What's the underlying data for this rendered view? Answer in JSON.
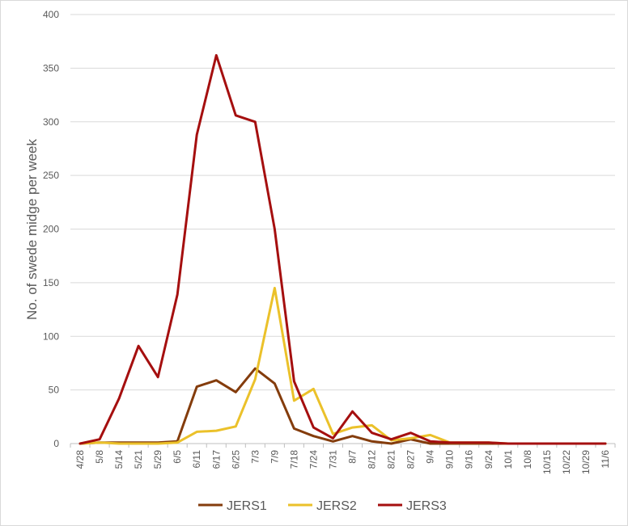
{
  "chart_data": {
    "type": "line",
    "title": "",
    "xlabel": "",
    "ylabel": "No. of swede midge per week",
    "ylim": [
      0,
      400
    ],
    "yticks": [
      0,
      50,
      100,
      150,
      200,
      250,
      300,
      350,
      400
    ],
    "grid": true,
    "legend": "bottom",
    "categories": [
      "4/28",
      "5/8",
      "5/14",
      "5/21",
      "5/29",
      "6/5",
      "6/11",
      "6/17",
      "6/25",
      "7/3",
      "7/9",
      "7/18",
      "7/24",
      "7/31",
      "8/7",
      "8/12",
      "8/21",
      "8/27",
      "9/4",
      "9/10",
      "9/16",
      "9/24",
      "10/1",
      "10/8",
      "10/15",
      "10/22",
      "10/29",
      "11/6"
    ],
    "series": [
      {
        "name": "JERS1",
        "color": "#843C0C",
        "values": [
          0,
          1,
          1,
          1,
          1,
          2,
          53,
          59,
          48,
          70,
          56,
          14,
          7,
          2,
          7,
          2,
          0,
          4,
          0,
          0,
          0,
          0,
          0,
          0,
          0,
          0,
          0,
          0
        ]
      },
      {
        "name": "JERS2",
        "color": "#EBC12A",
        "values": [
          0,
          1,
          0,
          0,
          0,
          1,
          11,
          12,
          16,
          60,
          145,
          40,
          51,
          9,
          15,
          17,
          3,
          5,
          8,
          1,
          1,
          1,
          0,
          0,
          0,
          0,
          0,
          0
        ]
      },
      {
        "name": "JERS3",
        "color": "#A50F0F",
        "values": [
          0,
          4,
          42,
          91,
          62,
          139,
          288,
          362,
          306,
          300,
          200,
          58,
          15,
          5,
          30,
          10,
          4,
          10,
          2,
          1,
          1,
          1,
          0,
          0,
          0,
          0,
          0,
          0
        ]
      }
    ]
  }
}
